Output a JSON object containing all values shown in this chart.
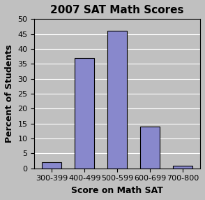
{
  "title": "2007 SAT Math Scores",
  "categories": [
    "300-399",
    "400-499",
    "500-599",
    "600-699",
    "700-800"
  ],
  "values": [
    2,
    37,
    46,
    14,
    1
  ],
  "bar_color": "#8888cc",
  "bar_edgecolor": "#000000",
  "xlabel": "Score on Math SAT",
  "ylabel": "Percent of Students",
  "ylim": [
    0,
    50
  ],
  "yticks": [
    0,
    5,
    10,
    15,
    20,
    25,
    30,
    35,
    40,
    45,
    50
  ],
  "background_color": "#c0c0c0",
  "plot_bg_color": "#c0c0c0",
  "title_fontsize": 11,
  "axis_label_fontsize": 9,
  "tick_fontsize": 8
}
